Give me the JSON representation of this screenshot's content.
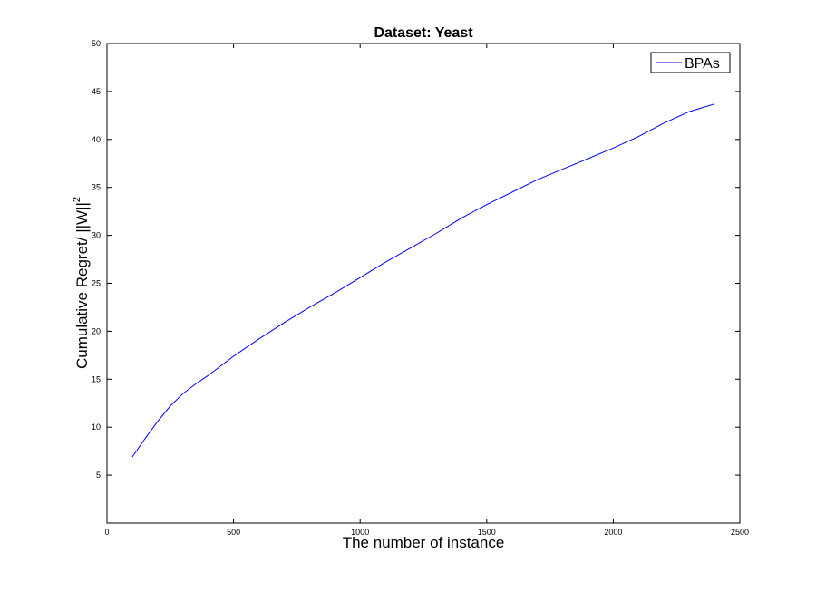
{
  "chart_data": {
    "type": "line",
    "title": "Dataset: Yeast",
    "xlabel": "The number of instance",
    "ylabel_main": "Cumulative Regret/ ||W||",
    "ylabel_superscript": "2",
    "xlim": [
      0,
      2500
    ],
    "ylim": [
      0,
      50
    ],
    "xticks": [
      0,
      500,
      1000,
      1500,
      2000,
      2500
    ],
    "yticks": [
      5,
      10,
      15,
      20,
      25,
      30,
      35,
      40,
      45,
      50
    ],
    "grid": false,
    "legend_position": "top-right",
    "series": [
      {
        "name": "BPAs",
        "color": "#0000ff",
        "x": [
          100,
          150,
          200,
          250,
          300,
          350,
          400,
          500,
          600,
          700,
          800,
          900,
          1000,
          1100,
          1200,
          1300,
          1400,
          1500,
          1600,
          1700,
          1800,
          1900,
          2000,
          2100,
          2200,
          2300,
          2400
        ],
        "y": [
          6.9,
          8.8,
          10.6,
          12.2,
          13.5,
          14.5,
          15.4,
          17.4,
          19.2,
          20.9,
          22.5,
          24.0,
          25.6,
          27.2,
          28.7,
          30.2,
          31.8,
          33.2,
          34.5,
          35.8,
          36.9,
          38.0,
          39.1,
          40.3,
          41.7,
          42.9,
          43.7
        ]
      }
    ]
  }
}
